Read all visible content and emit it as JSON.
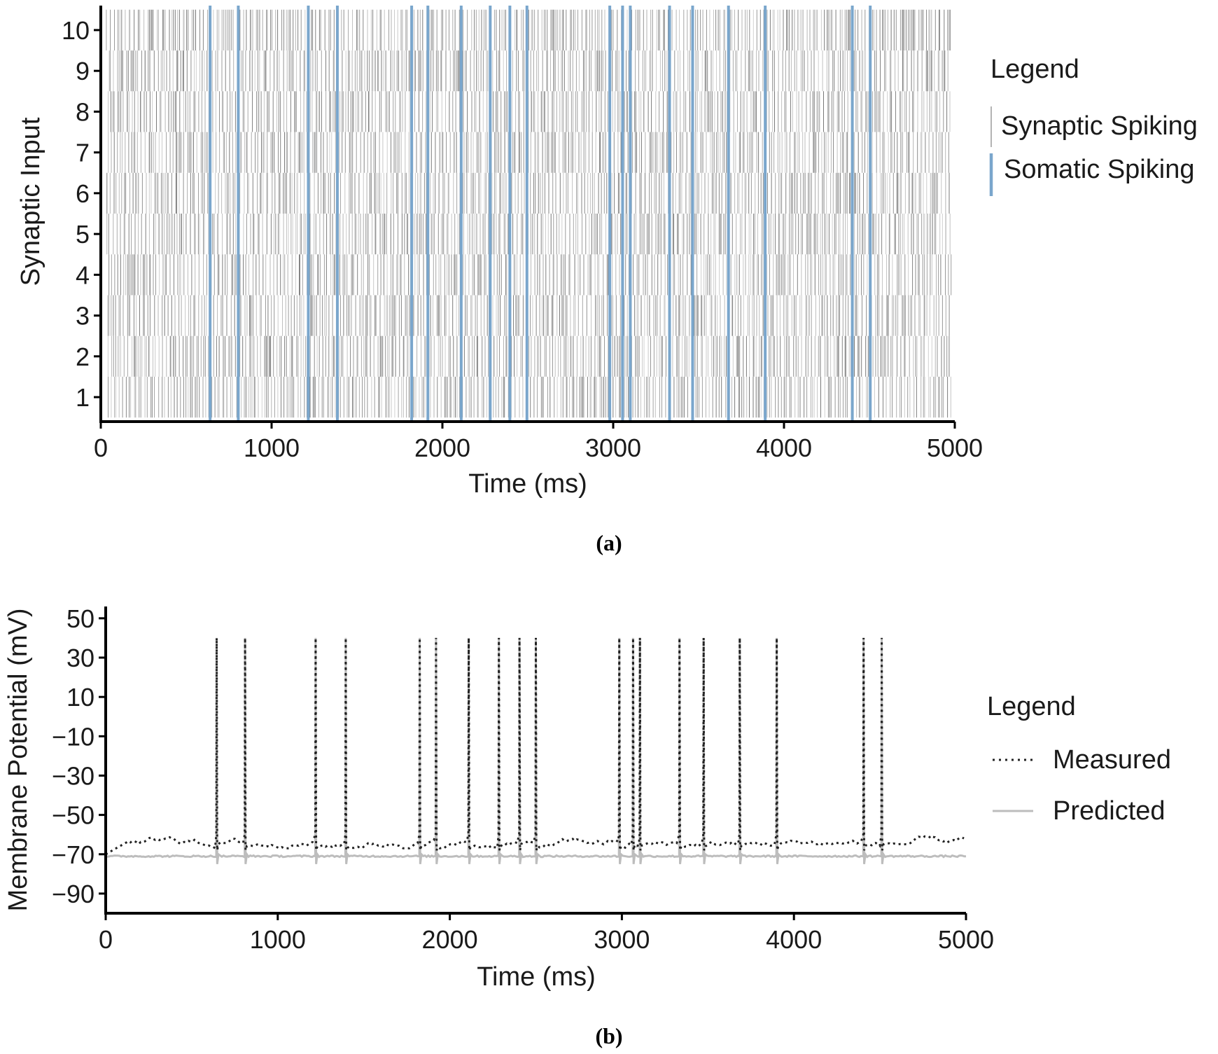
{
  "chart_data": [
    {
      "type": "scatter",
      "subtype": "raster",
      "caption": "(a)",
      "xlabel": "Time (ms)",
      "ylabel": "Synaptic Input",
      "xlim": [
        0,
        5000
      ],
      "ylim": [
        0.4,
        10.6
      ],
      "xticks": [
        0,
        1000,
        2000,
        3000,
        4000,
        5000
      ],
      "yticks": [
        1,
        2,
        3,
        4,
        5,
        6,
        7,
        8,
        9,
        10
      ],
      "grid": false,
      "legend": {
        "title": "Legend",
        "placement": "right",
        "entries": [
          {
            "name": "Synaptic Spiking",
            "color": "#9a9a9a"
          },
          {
            "name": "Somatic Spiking",
            "color": "#7aa6cc"
          }
        ]
      },
      "series": [
        {
          "name": "Synaptic Spiking",
          "color": "#9a9a9a",
          "channels": 10,
          "time_range_ms": [
            30,
            4980
          ]
        },
        {
          "name": "Somatic Spiking",
          "color": "#7aa6cc",
          "x": [
            640,
            805,
            1215,
            1385,
            1820,
            1915,
            2110,
            2280,
            2395,
            2495,
            2980,
            3055,
            3100,
            3330,
            3465,
            3675,
            3890,
            4400,
            4505
          ]
        }
      ]
    },
    {
      "type": "line",
      "caption": "(b)",
      "xlabel": "Time (ms)",
      "ylabel": "Membrane Potential (mV)",
      "xlim": [
        0,
        5000
      ],
      "ylim": [
        -100,
        56
      ],
      "xticks": [
        0,
        1000,
        2000,
        3000,
        4000,
        5000
      ],
      "yticks": [
        50,
        30,
        10,
        -10,
        -30,
        -50,
        -70,
        -90
      ],
      "ytick_labels": [
        "50",
        "30",
        "10",
        "−10",
        "−30",
        "−50",
        "−70",
        "−90"
      ],
      "grid": false,
      "spike_times_ms": [
        645,
        810,
        1220,
        1395,
        1825,
        1920,
        2110,
        2285,
        2405,
        2500,
        2985,
        3065,
        3105,
        3335,
        3475,
        3685,
        3900,
        4405,
        4510
      ],
      "spike_peak_mv": 40,
      "legend": {
        "title": "Legend",
        "placement": "right",
        "entries": [
          {
            "name": "Measured",
            "style": "dotted",
            "color": "#222222"
          },
          {
            "name": "Predicted",
            "style": "solid",
            "color": "#bdbdbd"
          }
        ]
      },
      "series": [
        {
          "name": "Measured",
          "style": "dotted",
          "color": "#222222",
          "baseline_mv": -64,
          "range_mv": [
            -67,
            -59
          ]
        },
        {
          "name": "Predicted",
          "style": "solid",
          "color": "#bdbdbd",
          "baseline_mv": -71,
          "trough_mv": -75
        }
      ]
    }
  ]
}
